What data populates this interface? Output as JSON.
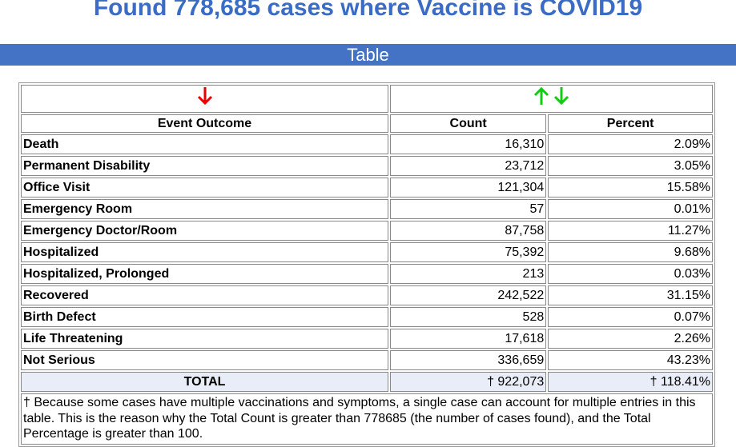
{
  "header": {
    "title": "Found 778,685 cases where Vaccine is COVID19"
  },
  "section": {
    "title": "Table"
  },
  "table": {
    "columns": [
      "Event Outcome",
      "Count",
      "Percent"
    ],
    "rows": [
      [
        "Death",
        "16,310",
        "2.09%"
      ],
      [
        "Permanent Disability",
        "23,712",
        "3.05%"
      ],
      [
        "Office Visit",
        "121,304",
        "15.58%"
      ],
      [
        "Emergency Room",
        "57",
        "0.01%"
      ],
      [
        "Emergency Doctor/Room",
        "87,758",
        "11.27%"
      ],
      [
        "Hospitalized",
        "75,392",
        "9.68%"
      ],
      [
        "Hospitalized, Prolonged",
        "213",
        "0.03%"
      ],
      [
        "Recovered",
        "242,522",
        "31.15%"
      ],
      [
        "Birth Defect",
        "528",
        "0.07%"
      ],
      [
        "Life Threatening",
        "17,618",
        "2.26%"
      ],
      [
        "Not Serious",
        "336,659",
        "43.23%"
      ]
    ],
    "total": [
      "TOTAL",
      "† 922,073",
      "† 118.41%"
    ],
    "footnote": "† Because some cases have multiple vaccinations and symptoms, a single case can account for multiple entries in this table. This is the reason why the Total Count is greater than 778685 (the number of cases found), and the Total Percentage is greater than 100."
  }
}
